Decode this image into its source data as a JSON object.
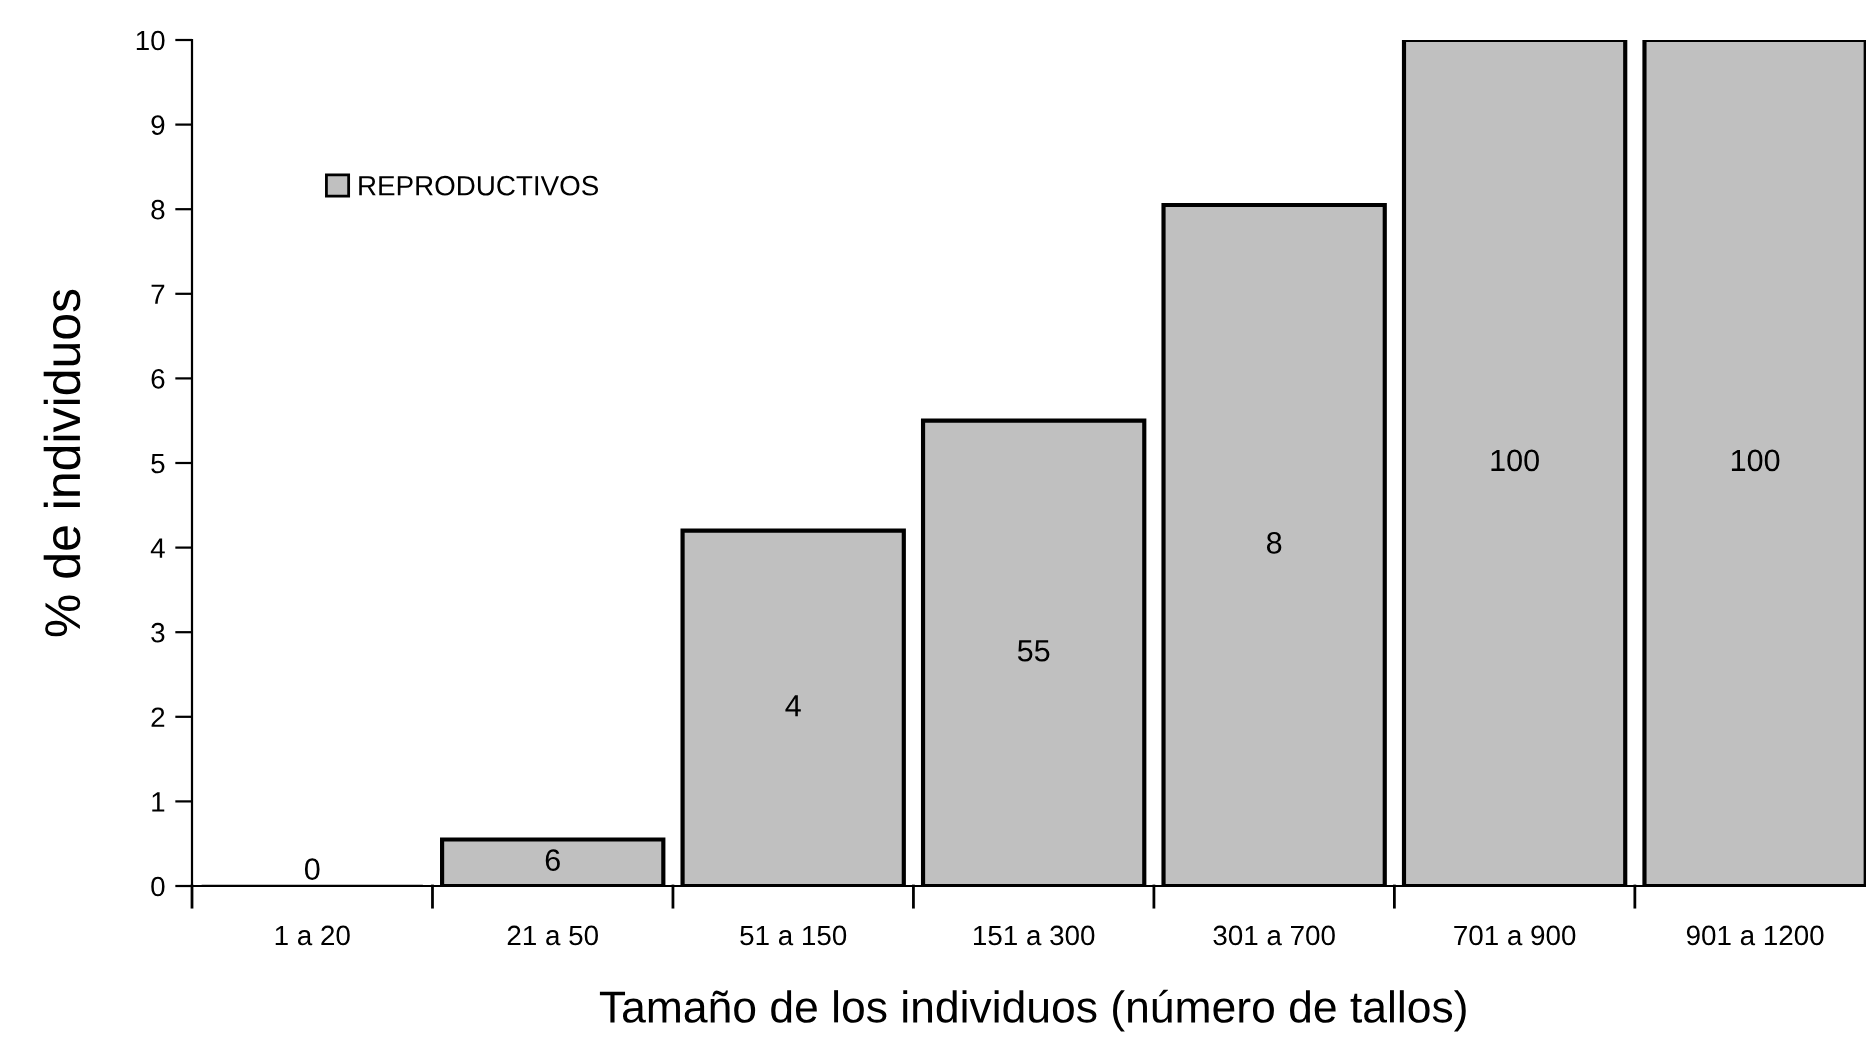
{
  "chart_data": {
    "type": "bar",
    "xlabel": "Tamaño de los individuos (número de tallos)",
    "ylabel": "% de individuos",
    "categories": [
      "1 a 20",
      "21 a 50",
      "51 a 150",
      "151 a 300",
      "301 a 700",
      "701 a 900",
      "901 a 1200"
    ],
    "series": [
      {
        "name": "REPRODUCTIVOS",
        "color": "#c0c0c0",
        "values": [
          0,
          0.55,
          4.2,
          5.5,
          8.05,
          10,
          10
        ]
      }
    ],
    "annotations": [
      "0",
      "6",
      "4",
      "55",
      "8",
      "100",
      "100"
    ],
    "ylim": [
      0,
      10
    ],
    "yticks": [
      0,
      1,
      2,
      3,
      4,
      5,
      6,
      7,
      8,
      9,
      10
    ],
    "grid": false,
    "legend": "top left"
  }
}
